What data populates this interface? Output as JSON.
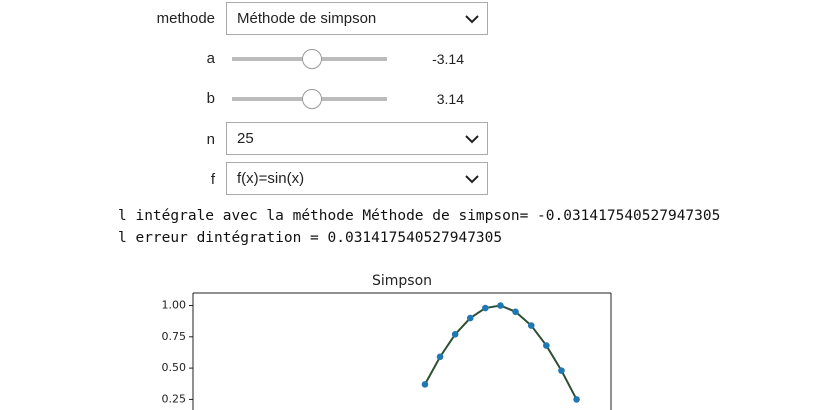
{
  "controls": {
    "methode": {
      "label": "methode",
      "value": "Méthode de simpson"
    },
    "a": {
      "label": "a",
      "value": -3.14
    },
    "b": {
      "label": "b",
      "value": 3.14
    },
    "n": {
      "label": "n",
      "value": "25"
    },
    "f": {
      "label": "f",
      "value": "f(x)=sin(x)"
    }
  },
  "output": [
    "l intégrale avec la méthode Méthode de simpson= -0.031417540527947305",
    "l erreur dintégration = 0.031417540527947305"
  ],
  "chart_data": {
    "type": "line",
    "title": "Simpson",
    "x": [
      0.38,
      0.63,
      0.88,
      1.13,
      1.38,
      1.63,
      1.88,
      2.14,
      2.39,
      2.64,
      2.89
    ],
    "values": [
      0.37,
      0.59,
      0.77,
      0.9,
      0.98,
      1.0,
      0.95,
      0.84,
      0.68,
      0.48,
      0.25
    ],
    "line_color": "#2f4f34",
    "marker_color": "#1f77b4",
    "xlim": [
      -3.46,
      3.46
    ],
    "ylim": [
      -1.1,
      1.1
    ],
    "yticks": [
      {
        "value": 1,
        "label": "1.00"
      },
      {
        "value": 0.75,
        "label": "0.75"
      },
      {
        "value": 0.5,
        "label": "0.50"
      },
      {
        "value": 0.25,
        "label": "0.25"
      }
    ]
  }
}
